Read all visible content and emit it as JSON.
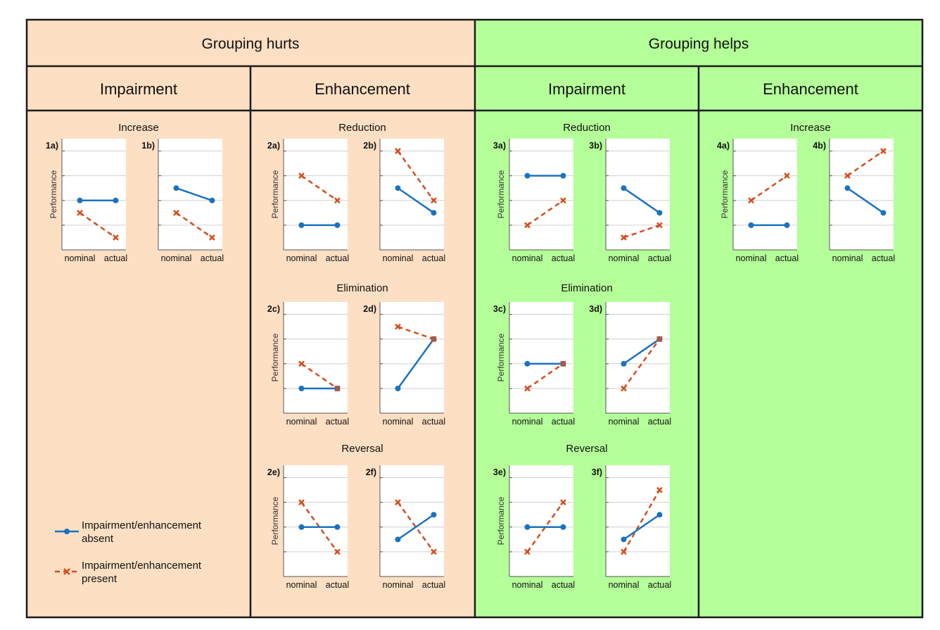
{
  "header": {
    "groups": [
      {
        "label": "Grouping hurts",
        "color": "#FDDFC3"
      },
      {
        "label": "Grouping helps",
        "color": "#B4FF99"
      }
    ],
    "columns": [
      "Impairment",
      "Enhancement",
      "Impairment",
      "Enhancement"
    ]
  },
  "colors": {
    "absent": "#1B72BE",
    "present": "#D2501F",
    "border": "#1a1a1a",
    "grid": "#d0d0d0"
  },
  "legend": {
    "absent_label_line1": "Impairment/enhancement",
    "absent_label_line2": "absent",
    "present_label_line1": "Impairment/enhancement",
    "present_label_line2": "present"
  },
  "chart_data": [
    {
      "type": "line",
      "panel": "1a)",
      "section": "Increase",
      "ylabel": "Performance",
      "categories": [
        "nominal",
        "actual"
      ],
      "ylim": [
        0,
        4.5
      ],
      "series": [
        {
          "name": "Impairment/enhancement absent",
          "values": [
            2,
            2
          ]
        },
        {
          "name": "Impairment/enhancement present",
          "values": [
            1.5,
            0.5
          ]
        }
      ]
    },
    {
      "type": "line",
      "panel": "1b)",
      "section": "",
      "ylabel": "",
      "categories": [
        "nominal",
        "actual"
      ],
      "ylim": [
        0,
        4.5
      ],
      "series": [
        {
          "name": "Impairment/enhancement absent",
          "values": [
            2.5,
            2
          ]
        },
        {
          "name": "Impairment/enhancement present",
          "values": [
            1.5,
            0.5
          ]
        }
      ]
    },
    {
      "type": "line",
      "panel": "2a)",
      "section": "Reduction",
      "ylabel": "Performance",
      "categories": [
        "nominal",
        "actual"
      ],
      "ylim": [
        0,
        4.5
      ],
      "series": [
        {
          "name": "Impairment/enhancement absent",
          "values": [
            1,
            1
          ]
        },
        {
          "name": "Impairment/enhancement present",
          "values": [
            3,
            2
          ]
        }
      ]
    },
    {
      "type": "line",
      "panel": "2b)",
      "section": "",
      "ylabel": "",
      "categories": [
        "nominal",
        "actual"
      ],
      "ylim": [
        0,
        4.5
      ],
      "series": [
        {
          "name": "Impairment/enhancement absent",
          "values": [
            2.5,
            1.5
          ]
        },
        {
          "name": "Impairment/enhancement present",
          "values": [
            4,
            2
          ]
        }
      ]
    },
    {
      "type": "line",
      "panel": "2c)",
      "section": "Elimination",
      "ylabel": "Performance",
      "categories": [
        "nominal",
        "actual"
      ],
      "ylim": [
        0,
        4.5
      ],
      "series": [
        {
          "name": "Impairment/enhancement absent",
          "values": [
            1,
            1
          ]
        },
        {
          "name": "Impairment/enhancement present",
          "values": [
            2,
            1
          ]
        }
      ]
    },
    {
      "type": "line",
      "panel": "2d)",
      "section": "",
      "ylabel": "",
      "categories": [
        "nominal",
        "actual"
      ],
      "ylim": [
        0,
        4.5
      ],
      "series": [
        {
          "name": "Impairment/enhancement absent",
          "values": [
            1,
            3
          ]
        },
        {
          "name": "Impairment/enhancement present",
          "values": [
            3.5,
            3
          ]
        }
      ]
    },
    {
      "type": "line",
      "panel": "2e)",
      "section": "Reversal",
      "ylabel": "Performance",
      "categories": [
        "nominal",
        "actual"
      ],
      "ylim": [
        0,
        4.5
      ],
      "series": [
        {
          "name": "Impairment/enhancement absent",
          "values": [
            2,
            2
          ]
        },
        {
          "name": "Impairment/enhancement present",
          "values": [
            3,
            1
          ]
        }
      ]
    },
    {
      "type": "line",
      "panel": "2f)",
      "section": "",
      "ylabel": "",
      "categories": [
        "nominal",
        "actual"
      ],
      "ylim": [
        0,
        4.5
      ],
      "series": [
        {
          "name": "Impairment/enhancement absent",
          "values": [
            1.5,
            2.5
          ]
        },
        {
          "name": "Impairment/enhancement present",
          "values": [
            3,
            1
          ]
        }
      ]
    },
    {
      "type": "line",
      "panel": "3a)",
      "section": "Reduction",
      "ylabel": "Performance",
      "categories": [
        "nominal",
        "actual"
      ],
      "ylim": [
        0,
        4.5
      ],
      "series": [
        {
          "name": "Impairment/enhancement absent",
          "values": [
            3,
            3
          ]
        },
        {
          "name": "Impairment/enhancement present",
          "values": [
            1,
            2
          ]
        }
      ]
    },
    {
      "type": "line",
      "panel": "3b)",
      "section": "",
      "ylabel": "",
      "categories": [
        "nominal",
        "actual"
      ],
      "ylim": [
        0,
        4.5
      ],
      "series": [
        {
          "name": "Impairment/enhancement absent",
          "values": [
            2.5,
            1.5
          ]
        },
        {
          "name": "Impairment/enhancement present",
          "values": [
            0.5,
            1
          ]
        }
      ]
    },
    {
      "type": "line",
      "panel": "3c)",
      "section": "Elimination",
      "ylabel": "Performance",
      "categories": [
        "nominal",
        "actual"
      ],
      "ylim": [
        0,
        4.5
      ],
      "series": [
        {
          "name": "Impairment/enhancement absent",
          "values": [
            2,
            2
          ]
        },
        {
          "name": "Impairment/enhancement present",
          "values": [
            1,
            2
          ]
        }
      ]
    },
    {
      "type": "line",
      "panel": "3d)",
      "section": "",
      "ylabel": "",
      "categories": [
        "nominal",
        "actual"
      ],
      "ylim": [
        0,
        4.5
      ],
      "series": [
        {
          "name": "Impairment/enhancement absent",
          "values": [
            2,
            3
          ]
        },
        {
          "name": "Impairment/enhancement present",
          "values": [
            1,
            3
          ]
        }
      ]
    },
    {
      "type": "line",
      "panel": "3e)",
      "section": "Reversal",
      "ylabel": "Performance",
      "categories": [
        "nominal",
        "actual"
      ],
      "ylim": [
        0,
        4.5
      ],
      "series": [
        {
          "name": "Impairment/enhancement absent",
          "values": [
            2,
            2
          ]
        },
        {
          "name": "Impairment/enhancement present",
          "values": [
            1,
            3
          ]
        }
      ]
    },
    {
      "type": "line",
      "panel": "3f)",
      "section": "",
      "ylabel": "",
      "categories": [
        "nominal",
        "actual"
      ],
      "ylim": [
        0,
        4.5
      ],
      "series": [
        {
          "name": "Impairment/enhancement absent",
          "values": [
            1.5,
            2.5
          ]
        },
        {
          "name": "Impairment/enhancement present",
          "values": [
            1,
            3.5
          ]
        }
      ]
    },
    {
      "type": "line",
      "panel": "4a)",
      "section": "Increase",
      "ylabel": "Performance",
      "categories": [
        "nominal",
        "actual"
      ],
      "ylim": [
        0,
        4.5
      ],
      "series": [
        {
          "name": "Impairment/enhancement absent",
          "values": [
            1,
            1
          ]
        },
        {
          "name": "Impairment/enhancement present",
          "values": [
            2,
            3
          ]
        }
      ]
    },
    {
      "type": "line",
      "panel": "4b)",
      "section": "",
      "ylabel": "",
      "categories": [
        "nominal",
        "actual"
      ],
      "ylim": [
        0,
        4.5
      ],
      "series": [
        {
          "name": "Impairment/enhancement absent",
          "values": [
            2.5,
            1.5
          ]
        },
        {
          "name": "Impairment/enhancement present",
          "values": [
            3,
            4
          ]
        }
      ]
    }
  ]
}
